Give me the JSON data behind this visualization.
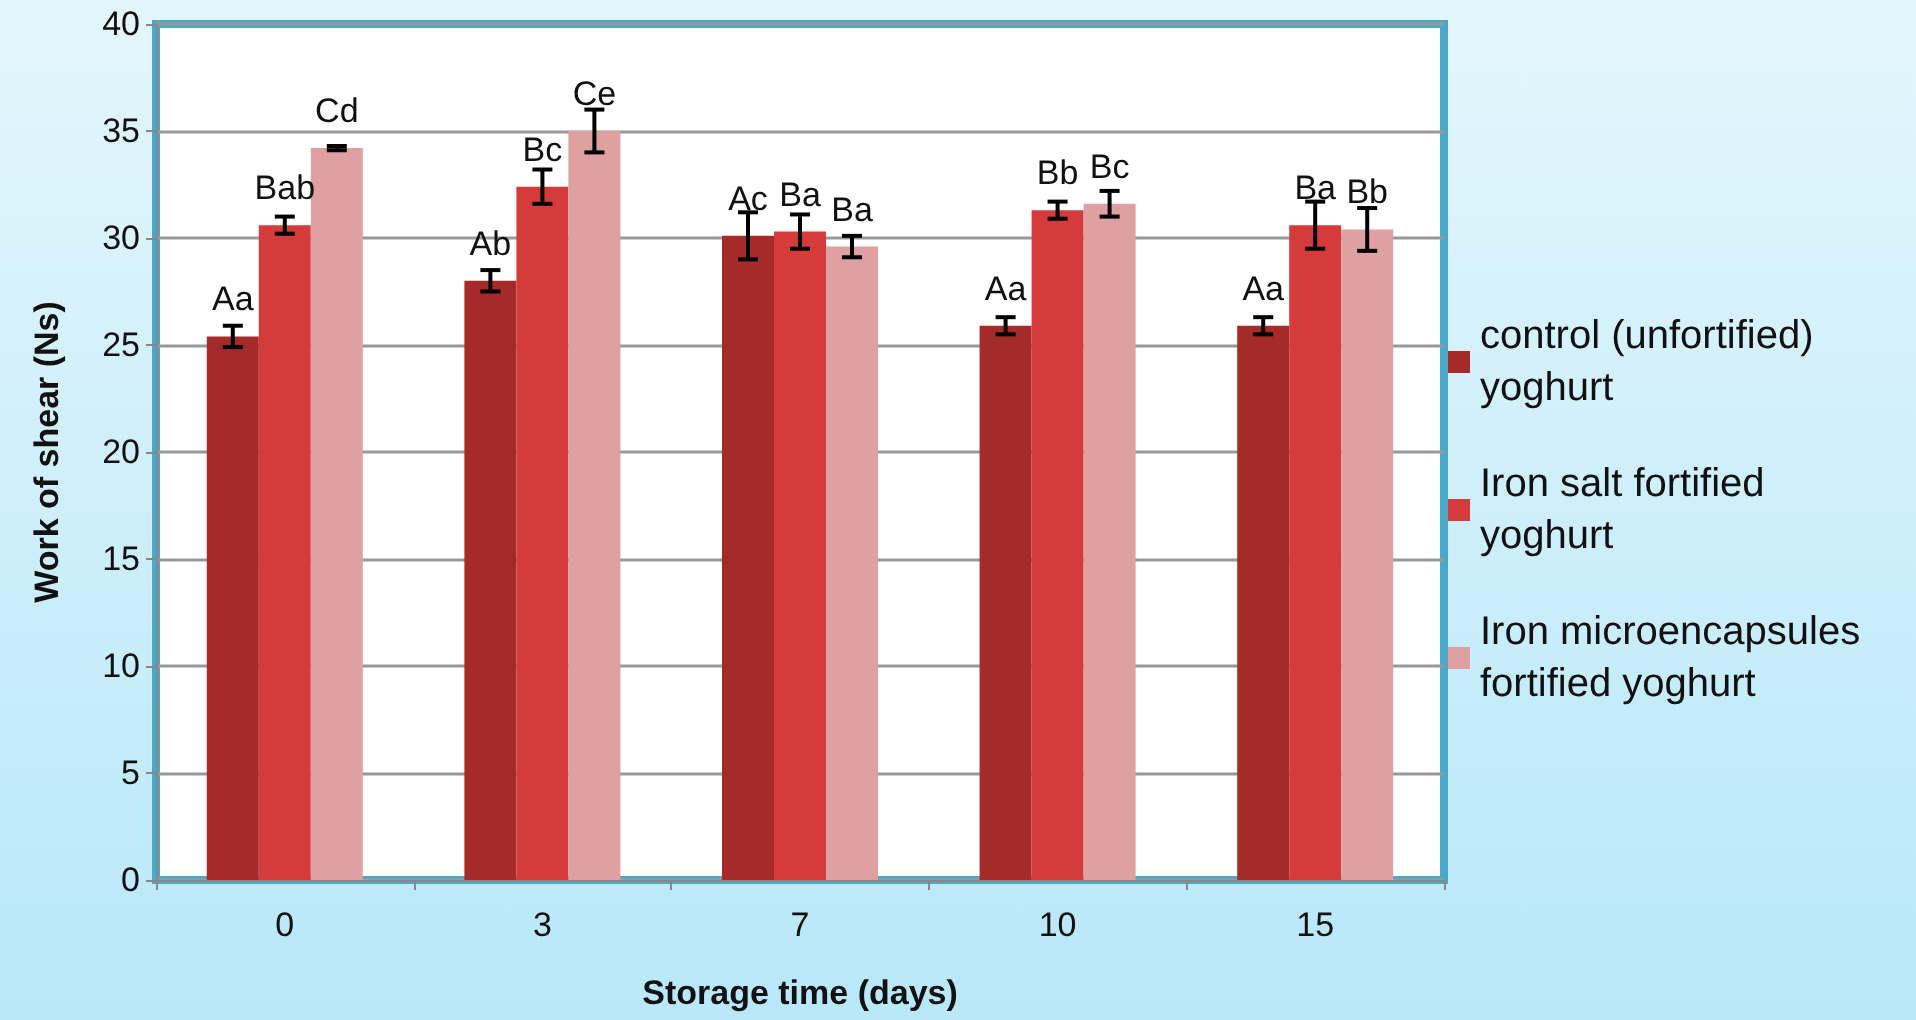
{
  "chart_data": {
    "type": "bar",
    "xlabel": "Storage time (days)",
    "ylabel": "Work of shear (Ns)",
    "categories": [
      "0",
      "3",
      "7",
      "10",
      "15"
    ],
    "series": [
      {
        "name": "control (unfortified) yoghurt",
        "color": "#a52a2a",
        "values": [
          25.4,
          28.0,
          30.1,
          25.9,
          25.9
        ],
        "errors": [
          0.5,
          0.5,
          1.1,
          0.4,
          0.4
        ],
        "value_labels": [
          "Aa",
          "Ab",
          "Ac",
          "Aa",
          "Aa"
        ]
      },
      {
        "name": "Iron salt fortified yoghurt",
        "color": "#d63b3b",
        "values": [
          30.6,
          32.4,
          30.3,
          31.3,
          30.6
        ],
        "errors": [
          0.4,
          0.8,
          0.8,
          0.4,
          1.1
        ],
        "value_labels": [
          "Bab",
          "Bc",
          "Ba",
          "Bb",
          "Ba"
        ]
      },
      {
        "name": "Iron microencapsules fortified yoghurt",
        "color": "#dea0a0",
        "values": [
          34.2,
          35.0,
          29.6,
          31.6,
          30.4
        ],
        "errors": [
          0.1,
          1.0,
          0.5,
          0.6,
          1.0
        ],
        "value_labels": [
          "Cd",
          "Ce",
          "Ba",
          "Bc",
          "Bb"
        ]
      }
    ],
    "ylim": [
      0,
      40
    ],
    "yticks": [
      0,
      5,
      10,
      15,
      20,
      25,
      30,
      35,
      40
    ],
    "grid": "y",
    "legend": "right"
  }
}
